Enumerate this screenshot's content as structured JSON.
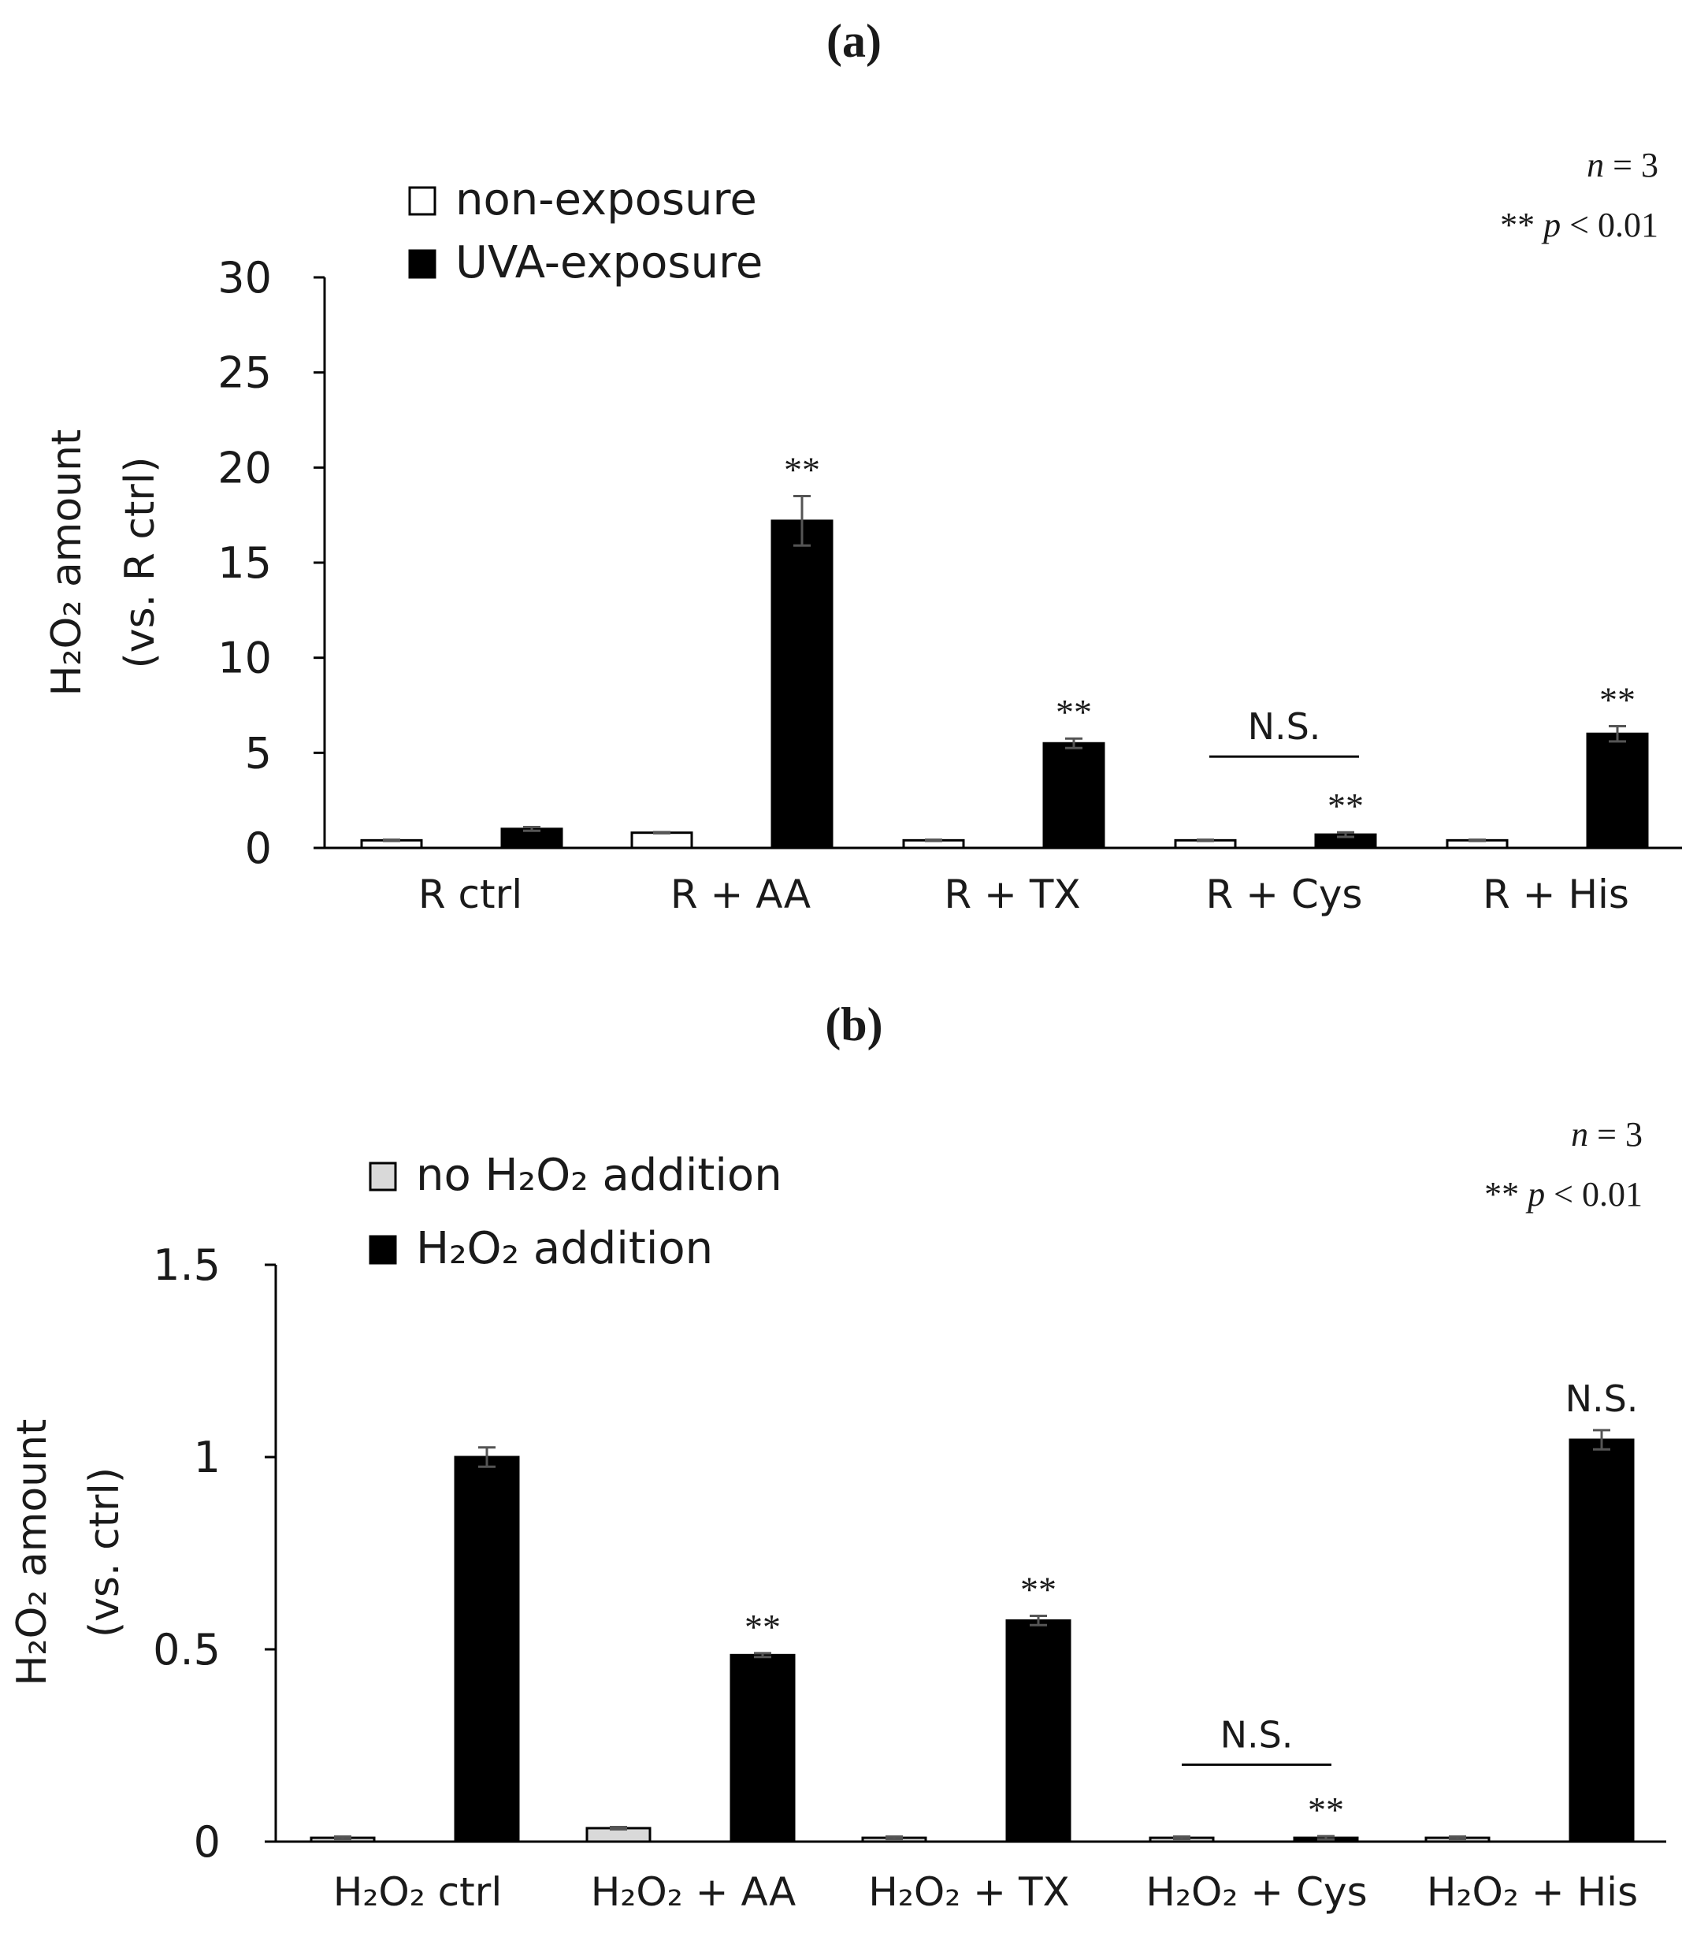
{
  "chart_data": [
    {
      "panel_label": "(a)",
      "type": "bar",
      "categories": [
        "R ctrl",
        "R + AA",
        "R + TX",
        "R + Cys",
        "R + His"
      ],
      "series": [
        {
          "name": "non-exposure",
          "color": "#ffffff",
          "values": [
            0.4,
            0.8,
            0.4,
            0.4,
            0.4
          ],
          "errors": [
            0.03,
            0.03,
            0.03,
            0.03,
            0.03
          ]
        },
        {
          "name": "UVA-exposure",
          "color": "#000000",
          "values": [
            1.0,
            17.2,
            5.5,
            0.7,
            6.0
          ],
          "errors": [
            0.1,
            1.3,
            0.25,
            0.12,
            0.4
          ]
        }
      ],
      "ylabel_main": "H₂O₂ amount",
      "ylabel_sub": "(vs. R ctrl)",
      "ylim": [
        0,
        30
      ],
      "yticks": [
        0,
        5,
        10,
        15,
        20,
        25,
        30
      ],
      "ytick_labels": [
        "0",
        "5",
        "10",
        "15",
        "20",
        "25",
        "30"
      ],
      "significance": [
        {
          "category_index": 1,
          "series_index": 1,
          "text": "**"
        },
        {
          "category_index": 2,
          "series_index": 1,
          "text": "**"
        },
        {
          "category_index": 3,
          "series_index": 1,
          "text": "**"
        },
        {
          "category_index": 4,
          "series_index": 1,
          "text": "**"
        }
      ],
      "ns_bracket": {
        "category_index": 3,
        "text": "N.S.",
        "value": 4.8
      },
      "stats_line1": {
        "italic": "n",
        "rest": " = 3"
      },
      "stats_line2": {
        "stars": "**",
        "italic": "p",
        "rest": " < 0.01"
      }
    },
    {
      "panel_label": "(b)",
      "type": "bar",
      "categories": [
        "H₂O₂ ctrl",
        "H₂O₂ + AA",
        "H₂O₂ + TX",
        "H₂O₂ + Cys",
        "H₂O₂ + His"
      ],
      "series": [
        {
          "name": "no H₂O₂ addition",
          "color": "#d9d9d9",
          "values": [
            0.01,
            0.035,
            0.01,
            0.01,
            0.01
          ],
          "errors": [
            0.003,
            0.003,
            0.003,
            0.003,
            0.003
          ]
        },
        {
          "name": "H₂O₂ addition",
          "color": "#000000",
          "values": [
            1.0,
            0.485,
            0.575,
            0.01,
            1.045
          ],
          "errors": [
            0.025,
            0.005,
            0.012,
            0.004,
            0.025
          ]
        }
      ],
      "ylabel_main": "H₂O₂ amount",
      "ylabel_sub": "(vs. ctrl)",
      "ylim": [
        0,
        1.5
      ],
      "yticks": [
        0,
        0.5,
        1,
        1.5
      ],
      "ytick_labels": [
        "0",
        "0.5",
        "1",
        "1.5"
      ],
      "significance": [
        {
          "category_index": 1,
          "series_index": 1,
          "text": "**"
        },
        {
          "category_index": 2,
          "series_index": 1,
          "text": "**"
        },
        {
          "category_index": 3,
          "series_index": 1,
          "text": "**"
        },
        {
          "category_index": 4,
          "series_index": 1,
          "text": "N.S."
        }
      ],
      "ns_bracket": {
        "category_index": 3,
        "text": "N.S.",
        "value": 0.2
      },
      "stats_line1": {
        "italic": "n",
        "rest": " = 3"
      },
      "stats_line2": {
        "stars": "**",
        "italic": "p",
        "rest": " < 0.01"
      }
    }
  ]
}
